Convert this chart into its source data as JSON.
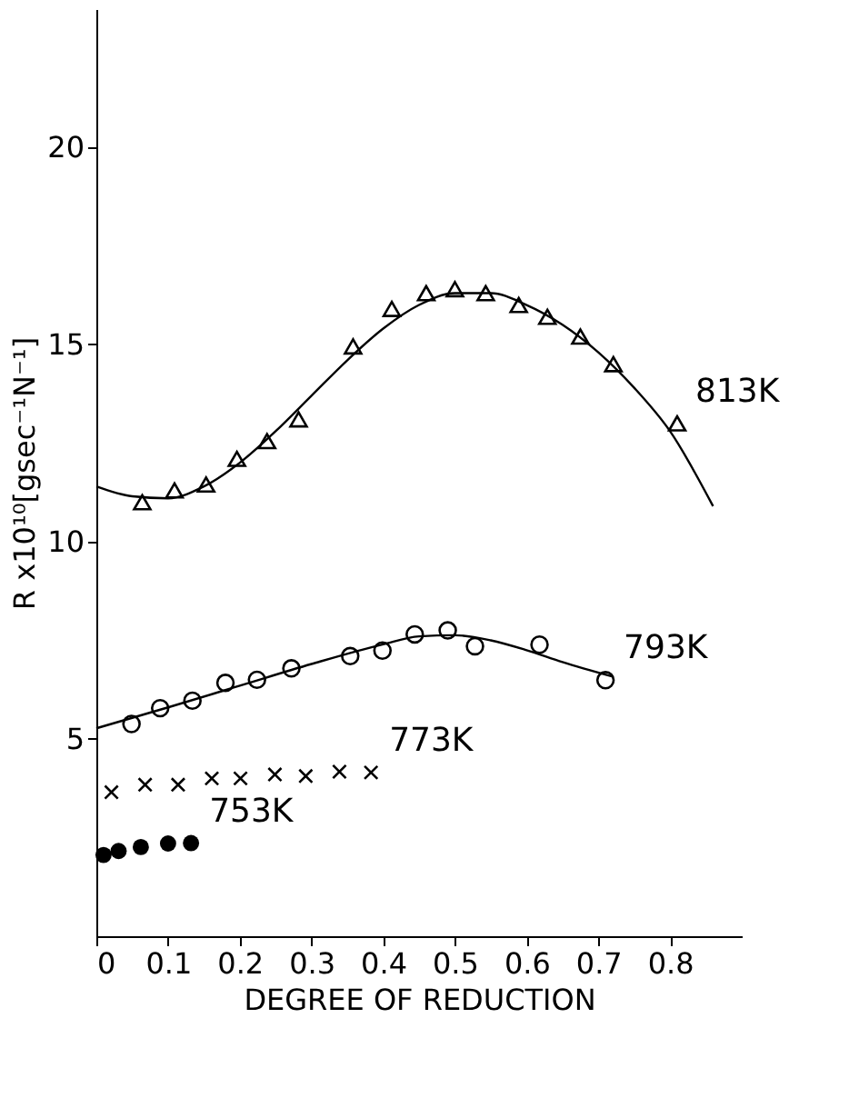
{
  "chart_data": {
    "type": "scatter",
    "xlabel": "DEGREE OF REDUCTION",
    "ylabel": "R x10¹⁰[gsec⁻¹N⁻¹]",
    "xlim": [
      0,
      0.9
    ],
    "ylim": [
      0,
      23.5
    ],
    "xticks": [
      0,
      0.1,
      0.2,
      0.3,
      0.4,
      0.5,
      0.6,
      0.7,
      0.8
    ],
    "yticks": [
      5,
      10,
      15,
      20
    ],
    "grid": false,
    "series": [
      {
        "name": "813K",
        "marker": "triangle",
        "color": "#000000",
        "x": [
          0.064,
          0.109,
          0.153,
          0.196,
          0.238,
          0.282,
          0.358,
          0.412,
          0.46,
          0.5,
          0.543,
          0.589,
          0.629,
          0.675,
          0.721,
          0.81
        ],
        "values": [
          11.0,
          11.3,
          11.45,
          12.1,
          12.55,
          13.1,
          14.95,
          15.9,
          16.3,
          16.4,
          16.3,
          16.0,
          15.7,
          15.2,
          14.5,
          13.0
        ]
      },
      {
        "type": "line",
        "marker": "none",
        "color": "#000000",
        "x": [
          0,
          0.05,
          0.1,
          0.15,
          0.2,
          0.25,
          0.3,
          0.35,
          0.4,
          0.45,
          0.5,
          0.55,
          0.6,
          0.65,
          0.7,
          0.75,
          0.8,
          0.86
        ],
        "values": [
          11.4,
          11.15,
          11.1,
          11.4,
          12.0,
          12.8,
          13.7,
          14.6,
          15.4,
          16.0,
          16.3,
          16.3,
          16.0,
          15.5,
          14.8,
          13.9,
          12.8,
          10.9
        ]
      },
      {
        "name": "793K",
        "marker": "circle",
        "color": "#000000",
        "x": [
          0.049,
          0.089,
          0.134,
          0.18,
          0.224,
          0.272,
          0.354,
          0.399,
          0.444,
          0.49,
          0.528,
          0.618,
          0.71
        ],
        "values": [
          5.38,
          5.78,
          5.97,
          6.42,
          6.5,
          6.79,
          7.1,
          7.24,
          7.65,
          7.75,
          7.35,
          7.39,
          6.49
        ]
      },
      {
        "type": "line",
        "marker": "none",
        "color": "#000000",
        "x": [
          0,
          0.1,
          0.2,
          0.3,
          0.4,
          0.45,
          0.5,
          0.55,
          0.6,
          0.65,
          0.72
        ],
        "values": [
          5.27,
          5.8,
          6.35,
          6.9,
          7.4,
          7.6,
          7.63,
          7.5,
          7.25,
          6.95,
          6.58
        ]
      },
      {
        "name": "773K",
        "marker": "cross",
        "color": "#000000",
        "x": [
          0.021,
          0.068,
          0.114,
          0.161,
          0.201,
          0.249,
          0.292,
          0.339,
          0.383
        ],
        "values": [
          3.65,
          3.84,
          3.84,
          4.0,
          4.0,
          4.1,
          4.06,
          4.17,
          4.15
        ]
      },
      {
        "name": "753K",
        "marker": "filled_circle",
        "color": "#000000",
        "x": [
          0.01,
          0.031,
          0.062,
          0.1,
          0.132
        ],
        "values": [
          2.06,
          2.16,
          2.26,
          2.35,
          2.36
        ]
      }
    ]
  }
}
